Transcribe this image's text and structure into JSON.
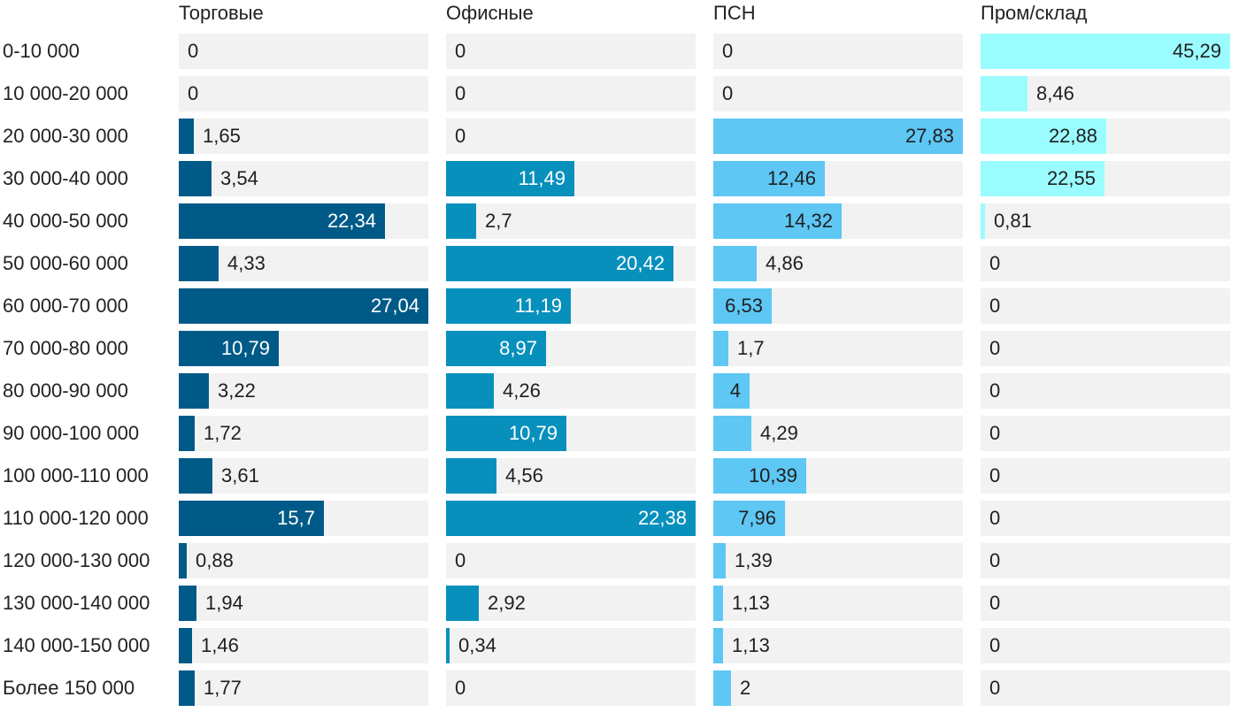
{
  "chart_data": {
    "type": "bar",
    "orientation": "horizontal",
    "layout": "small-multiples",
    "categories": [
      "0-10 000",
      "10 000-20 000",
      "20 000-30 000",
      "30 000-40 000",
      "40 000-50 000",
      "50 000-60 000",
      "60 000-70 000",
      "70 000-80 000",
      "80 000-90 000",
      "90 000-100 000",
      "100 000-110 000",
      "110 000-120 000",
      "120 000-130 000",
      "130 000-140 000",
      "140 000-150 000",
      "Более 150 000"
    ],
    "series": [
      {
        "name": "Торговые",
        "color": "#005a87",
        "values": [
          0,
          0,
          1.65,
          3.54,
          22.34,
          4.33,
          27.04,
          10.79,
          3.22,
          1.72,
          3.61,
          15.7,
          0.88,
          1.94,
          1.46,
          1.77
        ],
        "labels": [
          "0",
          "0",
          "1,65",
          "3,54",
          "22,34",
          "4,33",
          "27,04",
          "10,79",
          "3,22",
          "1,72",
          "3,61",
          "15,7",
          "0,88",
          "1,94",
          "1,46",
          "1,77"
        ]
      },
      {
        "name": "Офисные",
        "color": "#0890bd",
        "values": [
          0,
          0,
          0,
          11.49,
          2.7,
          20.42,
          11.19,
          8.97,
          4.26,
          10.79,
          4.56,
          22.38,
          0,
          2.92,
          0.34,
          0
        ],
        "labels": [
          "0",
          "0",
          "0",
          "11,49",
          "2,7",
          "20,42",
          "11,19",
          "8,97",
          "4,26",
          "10,79",
          "4,56",
          "22,38",
          "0",
          "2,92",
          "0,34",
          "0"
        ]
      },
      {
        "name": "ПСН",
        "color": "#5ec7f4",
        "values": [
          0,
          0,
          27.83,
          12.46,
          14.32,
          4.86,
          6.53,
          1.7,
          4,
          4.29,
          10.39,
          7.96,
          1.39,
          1.13,
          1.13,
          2
        ],
        "labels": [
          "0",
          "0",
          "27,83",
          "12,46",
          "14,32",
          "4,86",
          "6,53",
          "1,7",
          "4",
          "4,29",
          "10,39",
          "7,96",
          "1,39",
          "1,13",
          "1,13",
          "2"
        ]
      },
      {
        "name": "Пром/склад",
        "color": "#9bfcff",
        "values": [
          45.29,
          8.46,
          22.88,
          22.55,
          0.81,
          0,
          0,
          0,
          0,
          0,
          0,
          0,
          0,
          0,
          0,
          0
        ],
        "labels": [
          "45,29",
          "8,46",
          "22,88",
          "22,55",
          "0,81",
          "0",
          "0",
          "0",
          "0",
          "0",
          "0",
          "0",
          "0",
          "0",
          "0",
          "0"
        ]
      }
    ],
    "title": "",
    "xlabel": "",
    "ylabel": "",
    "grid": false,
    "legend": "none"
  }
}
